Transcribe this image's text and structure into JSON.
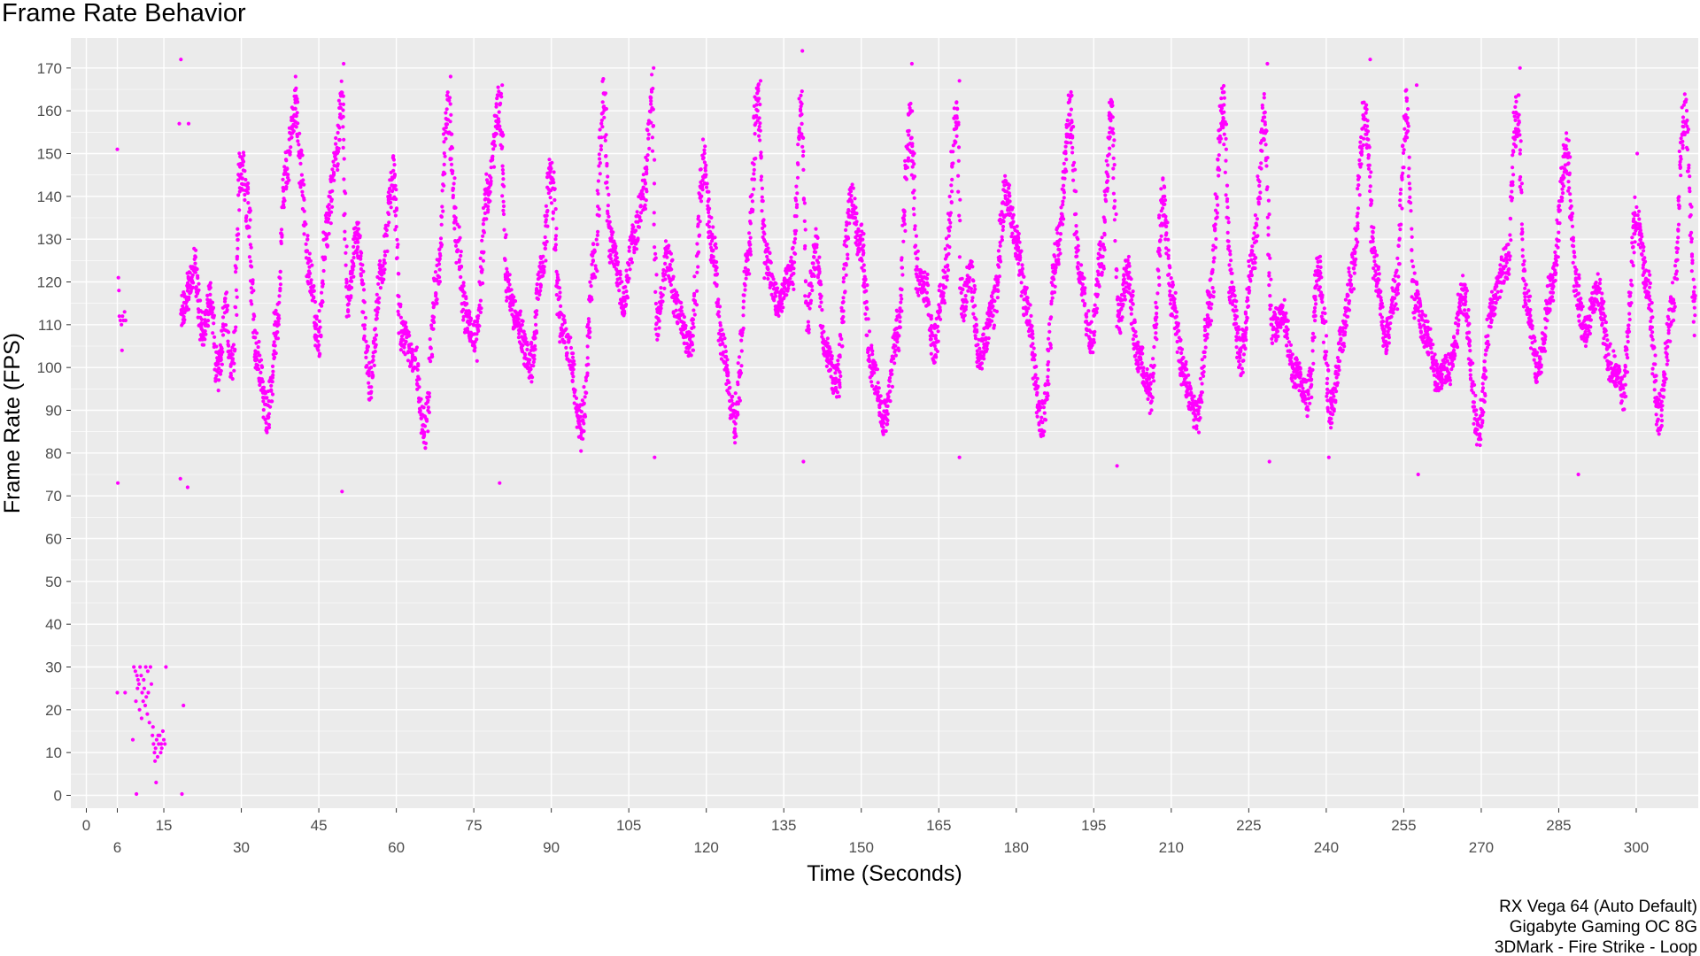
{
  "chart_data": {
    "type": "scatter",
    "title": "Frame Rate Behavior",
    "xlabel": "Time (Seconds)",
    "ylabel": "Frame Rate (FPS)",
    "xlim": [
      -3,
      312
    ],
    "ylim": [
      -3,
      177
    ],
    "x_ticks": [
      0,
      6,
      15,
      30,
      45,
      60,
      75,
      90,
      105,
      120,
      135,
      150,
      165,
      180,
      195,
      210,
      225,
      240,
      255,
      270,
      285,
      300
    ],
    "y_ticks": [
      0,
      10,
      20,
      30,
      40,
      50,
      60,
      70,
      80,
      90,
      100,
      110,
      120,
      130,
      140,
      150,
      160,
      170
    ],
    "grid": true,
    "point_color": "#ff00ff",
    "panel_color": "#ebebeb",
    "caption": [
      "RX Vega 64 (Auto Default)",
      "Gigabyte Gaming OC 8G",
      "3DMark - Fire Strike - Loop"
    ],
    "series": [
      {
        "points": [
          [
            6.0,
            151
          ],
          [
            6.2,
            121
          ],
          [
            6.3,
            118
          ],
          [
            6.4,
            112
          ],
          [
            6.6,
            111
          ],
          [
            6.8,
            110
          ],
          [
            7.0,
            112
          ],
          [
            7.2,
            111
          ],
          [
            7.4,
            113
          ],
          [
            7.6,
            111
          ],
          [
            6.9,
            104
          ],
          [
            6.1,
            73
          ],
          [
            6.0,
            24
          ],
          [
            7.5,
            24
          ],
          [
            9.2,
            30
          ],
          [
            9.5,
            29
          ],
          [
            9.8,
            28
          ],
          [
            10.0,
            27
          ],
          [
            10.2,
            26
          ],
          [
            10.4,
            30
          ],
          [
            10.6,
            28
          ],
          [
            10.8,
            24
          ],
          [
            11.0,
            22
          ],
          [
            11.2,
            25
          ],
          [
            11.4,
            21
          ],
          [
            11.6,
            23
          ],
          [
            11.8,
            19
          ],
          [
            12.0,
            24
          ],
          [
            12.2,
            17
          ],
          [
            9.6,
            22
          ],
          [
            9.9,
            25
          ],
          [
            10.3,
            20
          ],
          [
            10.7,
            18
          ],
          [
            11.1,
            27
          ],
          [
            11.5,
            30
          ],
          [
            11.9,
            29
          ],
          [
            12.4,
            30
          ],
          [
            12.6,
            26
          ],
          [
            12.8,
            14
          ],
          [
            13.0,
            12
          ],
          [
            13.2,
            10
          ],
          [
            13.4,
            11
          ],
          [
            13.6,
            13
          ],
          [
            13.8,
            9
          ],
          [
            14.0,
            12
          ],
          [
            14.2,
            14
          ],
          [
            14.4,
            10
          ],
          [
            14.6,
            11
          ],
          [
            14.8,
            15
          ],
          [
            15.0,
            13
          ],
          [
            15.2,
            12
          ],
          [
            15.4,
            30
          ],
          [
            12.9,
            16
          ],
          [
            13.3,
            8
          ],
          [
            13.9,
            14
          ],
          [
            14.5,
            12
          ],
          [
            9.0,
            13
          ],
          [
            9.7,
            0.3
          ],
          [
            13.5,
            3
          ],
          [
            18.5,
            0.3
          ],
          [
            18.8,
            21
          ],
          [
            18.3,
            172
          ],
          [
            18.0,
            157
          ],
          [
            19.8,
            157
          ],
          [
            18.2,
            74
          ],
          [
            19.6,
            72
          ]
        ],
        "segments": [
          [
            18.4,
            113
          ],
          [
            21,
            123
          ],
          [
            22.5,
            108
          ],
          [
            24,
            116
          ],
          [
            25.5,
            99
          ],
          [
            27,
            113
          ],
          [
            28.2,
            100
          ],
          [
            30,
            148
          ],
          [
            31.2,
            137
          ],
          [
            32.8,
            104
          ],
          [
            35,
            89
          ],
          [
            37,
            111
          ],
          [
            38.5,
            145
          ],
          [
            40.5,
            161
          ],
          [
            41.5,
            146
          ],
          [
            43,
            124
          ],
          [
            45,
            107
          ],
          [
            46.5,
            132
          ],
          [
            48.5,
            150
          ],
          [
            49.5,
            163
          ],
          [
            50.5,
            116
          ],
          [
            52.5,
            131
          ],
          [
            55,
            97
          ],
          [
            57,
            121
          ],
          [
            59.5,
            145
          ],
          [
            61,
            108
          ],
          [
            63.5,
            102
          ],
          [
            65.5,
            86
          ],
          [
            68,
            121
          ],
          [
            70,
            160
          ],
          [
            71.8,
            129
          ],
          [
            73.5,
            112
          ],
          [
            75.5,
            107
          ],
          [
            77.5,
            140
          ],
          [
            80,
            161
          ],
          [
            81.5,
            119
          ],
          [
            83,
            112
          ],
          [
            86,
            101
          ],
          [
            88,
            121
          ],
          [
            90,
            145
          ],
          [
            91.8,
            111
          ],
          [
            93.5,
            104
          ],
          [
            95.8,
            86
          ],
          [
            98.5,
            126
          ],
          [
            100,
            163
          ],
          [
            101.5,
            129
          ],
          [
            104,
            116
          ],
          [
            106,
            130
          ],
          [
            108,
            141
          ],
          [
            109.5,
            163
          ],
          [
            110.5,
            110
          ],
          [
            112.5,
            126
          ],
          [
            114.5,
            113
          ],
          [
            117,
            104
          ],
          [
            119.5,
            148
          ],
          [
            121.2,
            128
          ],
          [
            123.2,
            104
          ],
          [
            125.5,
            87
          ],
          [
            128,
            124
          ],
          [
            130,
            163
          ],
          [
            131.5,
            125
          ],
          [
            134,
            115
          ],
          [
            136.5,
            122
          ],
          [
            138.5,
            160
          ],
          [
            139.5,
            112
          ],
          [
            141.2,
            128
          ],
          [
            143,
            104
          ],
          [
            145.2,
            96
          ],
          [
            148,
            139
          ],
          [
            150,
            128
          ],
          [
            152,
            100
          ],
          [
            154.5,
            88
          ],
          [
            157,
            109
          ],
          [
            159.5,
            158
          ],
          [
            161,
            120
          ],
          [
            162.5,
            119
          ],
          [
            164,
            105
          ],
          [
            166,
            120
          ],
          [
            168.5,
            158
          ],
          [
            169.5,
            114
          ],
          [
            171,
            122
          ],
          [
            173,
            103
          ],
          [
            175.5,
            113
          ],
          [
            178,
            141
          ],
          [
            180,
            130
          ],
          [
            182,
            114
          ],
          [
            185,
            87
          ],
          [
            188,
            128
          ],
          [
            190.5,
            159
          ],
          [
            192,
            124
          ],
          [
            194.5,
            107
          ],
          [
            196.5,
            126
          ],
          [
            198.5,
            158
          ],
          [
            199.8,
            111
          ],
          [
            201.5,
            122
          ],
          [
            203.5,
            103
          ],
          [
            206,
            95
          ],
          [
            208.5,
            139
          ],
          [
            210.2,
            116
          ],
          [
            212.5,
            98
          ],
          [
            215,
            88
          ],
          [
            217.5,
            115
          ],
          [
            220,
            162
          ],
          [
            221.5,
            120
          ],
          [
            223.5,
            103
          ],
          [
            226,
            127
          ],
          [
            228,
            159
          ],
          [
            229.5,
            109
          ],
          [
            231.5,
            112
          ],
          [
            234,
            99
          ],
          [
            236.5,
            93
          ],
          [
            238.5,
            122
          ],
          [
            241,
            90
          ],
          [
            243,
            106
          ],
          [
            245,
            122
          ],
          [
            247.5,
            158
          ],
          [
            249.5,
            123
          ],
          [
            251.5,
            107
          ],
          [
            253.5,
            118
          ],
          [
            255.5,
            160
          ],
          [
            257,
            117
          ],
          [
            259,
            109
          ],
          [
            261.5,
            98
          ],
          [
            264,
            100
          ],
          [
            266.5,
            117
          ],
          [
            269.5,
            85
          ],
          [
            272,
            114
          ],
          [
            275,
            125
          ],
          [
            277,
            160
          ],
          [
            278.5,
            117
          ],
          [
            281,
            99
          ],
          [
            283.5,
            118
          ],
          [
            286.5,
            150
          ],
          [
            288.5,
            118
          ],
          [
            290,
            108
          ],
          [
            292.5,
            118
          ],
          [
            295,
            101
          ],
          [
            297.5,
            95
          ],
          [
            300,
            136
          ],
          [
            302,
            120
          ],
          [
            304.5,
            89
          ],
          [
            307,
            115
          ],
          [
            309.5,
            160
          ],
          [
            311.5,
            112
          ]
        ],
        "outliers": [
          [
            49.8,
            171
          ],
          [
            49.5,
            71
          ],
          [
            40.5,
            168
          ],
          [
            70.5,
            168
          ],
          [
            80.5,
            166
          ],
          [
            80,
            73
          ],
          [
            109.8,
            170
          ],
          [
            110,
            79
          ],
          [
            130.5,
            167
          ],
          [
            138.6,
            174
          ],
          [
            138.8,
            78
          ],
          [
            159.8,
            171
          ],
          [
            169,
            167
          ],
          [
            169,
            79
          ],
          [
            199.5,
            77
          ],
          [
            220.3,
            163
          ],
          [
            228.6,
            171
          ],
          [
            229,
            78
          ],
          [
            240.5,
            79
          ],
          [
            248.5,
            172
          ],
          [
            257.5,
            166
          ],
          [
            257.8,
            75
          ],
          [
            277.5,
            170
          ],
          [
            288.8,
            75
          ],
          [
            300.2,
            150
          ]
        ]
      }
    ]
  }
}
